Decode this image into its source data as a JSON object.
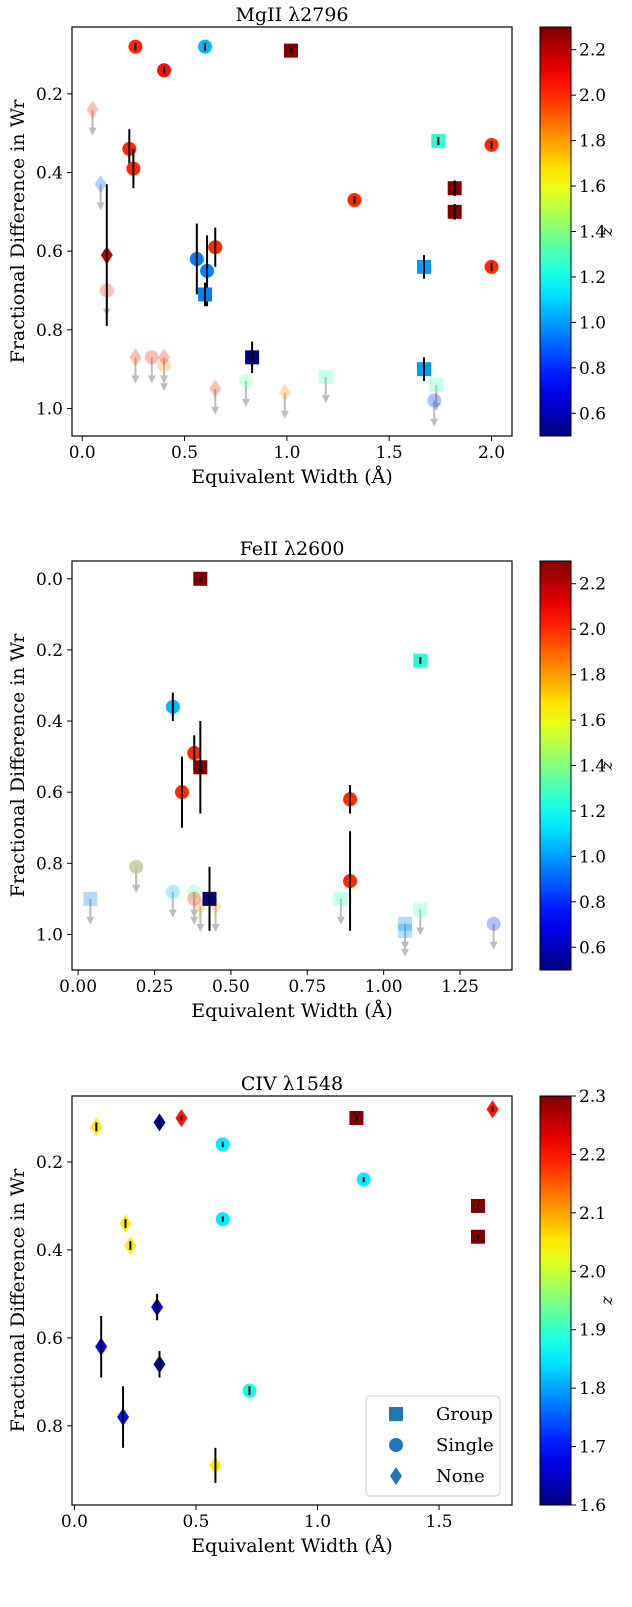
{
  "legend": {
    "entries": [
      {
        "label": "Group",
        "marker": "square"
      },
      {
        "label": "Single",
        "marker": "circle"
      },
      {
        "label": "None",
        "marker": "diamond"
      }
    ],
    "placement": "lower-right",
    "marker_color": "#1f77b4"
  },
  "chart_data": [
    {
      "type": "scatter",
      "title": "MgII λ2796",
      "xlabel": "Equivalent Width (Å)",
      "ylabel": "Fractional Difference in Wr",
      "xlim": [
        -0.05,
        2.1
      ],
      "ylim": [
        1.07,
        0.03
      ],
      "y_inverted": true,
      "xticks": [
        0.0,
        0.5,
        1.0,
        1.5,
        2.0
      ],
      "xtick_labels": [
        "0.0",
        "0.5",
        "1.0",
        "1.5",
        "2.0"
      ],
      "yticks": [
        0.2,
        0.4,
        0.6,
        0.8,
        1.0
      ],
      "ytick_labels": [
        "0.2",
        "0.4",
        "0.6",
        "0.8",
        "1.0"
      ],
      "colorbar": {
        "label": "z",
        "range": [
          0.5,
          2.3
        ],
        "ticks": [
          0.6,
          0.8,
          1.0,
          1.2,
          1.4,
          1.6,
          1.8,
          2.0,
          2.2
        ],
        "tick_labels": [
          "0.6",
          "0.8",
          "1.0",
          "1.2",
          "1.4",
          "1.6",
          "1.8",
          "2.0",
          "2.2"
        ]
      },
      "detections": [
        {
          "x": 0.26,
          "y": 0.08,
          "err": 0.01,
          "z": 2.0,
          "marker": "circle"
        },
        {
          "x": 0.6,
          "y": 0.08,
          "err": 0.01,
          "z": 1.05,
          "marker": "circle"
        },
        {
          "x": 1.02,
          "y": 0.09,
          "err": 0.0,
          "z": 2.3,
          "marker": "square"
        },
        {
          "x": 0.4,
          "y": 0.14,
          "err": 0.01,
          "z": 2.05,
          "marker": "circle"
        },
        {
          "x": 1.74,
          "y": 0.32,
          "err": 0.01,
          "z": 1.25,
          "marker": "square"
        },
        {
          "x": 2.0,
          "y": 0.33,
          "err": 0.01,
          "z": 2.0,
          "marker": "circle"
        },
        {
          "x": 0.23,
          "y": 0.34,
          "err": 0.05,
          "z": 2.0,
          "marker": "circle"
        },
        {
          "x": 0.25,
          "y": 0.39,
          "err": 0.05,
          "z": 2.0,
          "marker": "circle"
        },
        {
          "x": 1.82,
          "y": 0.44,
          "err": 0.02,
          "z": 2.3,
          "marker": "square"
        },
        {
          "x": 1.33,
          "y": 0.47,
          "err": 0.01,
          "z": 2.0,
          "marker": "circle"
        },
        {
          "x": 1.82,
          "y": 0.5,
          "err": 0.02,
          "z": 2.3,
          "marker": "square"
        },
        {
          "x": 0.65,
          "y": 0.59,
          "err": 0.05,
          "z": 2.0,
          "marker": "circle"
        },
        {
          "x": 0.12,
          "y": 0.61,
          "err": 0.18,
          "z": 2.2,
          "marker": "diamond"
        },
        {
          "x": 0.56,
          "y": 0.62,
          "err": 0.09,
          "z": 0.95,
          "marker": "circle"
        },
        {
          "x": 0.61,
          "y": 0.65,
          "err": 0.09,
          "z": 0.95,
          "marker": "circle"
        },
        {
          "x": 1.67,
          "y": 0.64,
          "err": 0.03,
          "z": 1.0,
          "marker": "square"
        },
        {
          "x": 2.0,
          "y": 0.64,
          "err": 0.01,
          "z": 2.0,
          "marker": "circle"
        },
        {
          "x": 0.6,
          "y": 0.71,
          "err": 0.03,
          "z": 0.95,
          "marker": "square"
        },
        {
          "x": 0.83,
          "y": 0.87,
          "err": 0.04,
          "z": 0.5,
          "marker": "square"
        },
        {
          "x": 1.67,
          "y": 0.9,
          "err": 0.03,
          "z": 1.0,
          "marker": "square"
        }
      ],
      "upper_limits": [
        {
          "x": 0.05,
          "y": 0.24,
          "z": 2.0,
          "marker": "diamond"
        },
        {
          "x": 0.09,
          "y": 0.43,
          "z": 0.9,
          "marker": "diamond"
        },
        {
          "x": 0.12,
          "y": 0.7,
          "z": 2.0,
          "marker": "circle"
        },
        {
          "x": 0.26,
          "y": 0.87,
          "z": 2.0,
          "marker": "diamond"
        },
        {
          "x": 0.34,
          "y": 0.87,
          "z": 2.0,
          "marker": "circle"
        },
        {
          "x": 0.4,
          "y": 0.89,
          "z": 1.8,
          "marker": "circle"
        },
        {
          "x": 0.4,
          "y": 0.87,
          "z": 2.0,
          "marker": "diamond"
        },
        {
          "x": 0.65,
          "y": 0.95,
          "z": 2.0,
          "marker": "diamond"
        },
        {
          "x": 0.8,
          "y": 0.93,
          "z": 1.35,
          "marker": "circle"
        },
        {
          "x": 0.99,
          "y": 0.96,
          "z": 1.8,
          "marker": "diamond"
        },
        {
          "x": 1.19,
          "y": 0.92,
          "z": 1.3,
          "marker": "square"
        },
        {
          "x": 1.73,
          "y": 0.94,
          "z": 1.3,
          "marker": "square"
        },
        {
          "x": 1.72,
          "y": 0.98,
          "z": 0.8,
          "marker": "circle"
        }
      ]
    },
    {
      "type": "scatter",
      "title": "FeII λ2600",
      "xlabel": "Equivalent Width (Å)",
      "ylabel": "Fractional Difference in Wr",
      "xlim": [
        -0.02,
        1.42
      ],
      "ylim": [
        1.1,
        -0.05
      ],
      "y_inverted": true,
      "xticks": [
        0.0,
        0.25,
        0.5,
        0.75,
        1.0,
        1.25
      ],
      "xtick_labels": [
        "0.00",
        "0.25",
        "0.50",
        "0.75",
        "1.00",
        "1.25"
      ],
      "yticks": [
        0.0,
        0.2,
        0.4,
        0.6,
        0.8,
        1.0
      ],
      "ytick_labels": [
        "0.0",
        "0.2",
        "0.4",
        "0.6",
        "0.8",
        "1.0"
      ],
      "colorbar": {
        "label": "z",
        "range": [
          0.5,
          2.3
        ],
        "ticks": [
          0.6,
          0.8,
          1.0,
          1.2,
          1.4,
          1.6,
          1.8,
          2.0,
          2.2
        ],
        "tick_labels": [
          "0.6",
          "0.8",
          "1.0",
          "1.2",
          "1.4",
          "1.6",
          "1.8",
          "2.0",
          "2.2"
        ]
      },
      "detections": [
        {
          "x": 0.4,
          "y": 0.0,
          "err": 0.0,
          "z": 2.3,
          "marker": "square"
        },
        {
          "x": 1.12,
          "y": 0.23,
          "err": 0.01,
          "z": 1.25,
          "marker": "square"
        },
        {
          "x": 0.31,
          "y": 0.36,
          "err": 0.04,
          "z": 1.05,
          "marker": "circle"
        },
        {
          "x": 0.38,
          "y": 0.49,
          "err": 0.05,
          "z": 2.0,
          "marker": "circle"
        },
        {
          "x": 0.4,
          "y": 0.53,
          "err": 0.13,
          "z": 2.3,
          "marker": "square"
        },
        {
          "x": 0.34,
          "y": 0.6,
          "err": 0.1,
          "z": 2.0,
          "marker": "circle"
        },
        {
          "x": 0.89,
          "y": 0.62,
          "err": 0.04,
          "z": 2.0,
          "marker": "circle"
        },
        {
          "x": 0.89,
          "y": 0.85,
          "err": 0.14,
          "z": 2.0,
          "marker": "circle"
        },
        {
          "x": 0.43,
          "y": 0.9,
          "err": 0.09,
          "z": 0.5,
          "marker": "square"
        }
      ],
      "upper_limits": [
        {
          "x": 0.04,
          "y": 0.9,
          "z": 0.95,
          "marker": "square"
        },
        {
          "x": 0.19,
          "y": 0.81,
          "z": 2.0,
          "marker": "circle"
        },
        {
          "x": 0.19,
          "y": 0.81,
          "z": 1.35,
          "marker": "circle"
        },
        {
          "x": 0.31,
          "y": 0.88,
          "z": 1.05,
          "marker": "circle"
        },
        {
          "x": 0.38,
          "y": 0.88,
          "z": 1.35,
          "marker": "circle"
        },
        {
          "x": 0.38,
          "y": 0.9,
          "z": 2.0,
          "marker": "circle"
        },
        {
          "x": 0.4,
          "y": 0.92,
          "z": 1.8,
          "marker": "diamond"
        },
        {
          "x": 0.45,
          "y": 0.92,
          "z": 1.8,
          "marker": "diamond"
        },
        {
          "x": 0.86,
          "y": 0.9,
          "z": 1.3,
          "marker": "square"
        },
        {
          "x": 1.07,
          "y": 0.97,
          "z": 0.95,
          "marker": "square"
        },
        {
          "x": 1.07,
          "y": 0.99,
          "z": 1.0,
          "marker": "square"
        },
        {
          "x": 1.12,
          "y": 0.93,
          "z": 1.3,
          "marker": "square"
        },
        {
          "x": 1.36,
          "y": 0.97,
          "z": 0.8,
          "marker": "circle"
        }
      ]
    },
    {
      "type": "scatter",
      "title": "CIV λ1548",
      "xlabel": "Equivalent Width (Å)",
      "ylabel": "Fractional Difference in Wr",
      "xlim": [
        -0.01,
        1.8
      ],
      "ylim": [
        0.98,
        0.05
      ],
      "y_inverted": true,
      "xticks": [
        0.0,
        0.5,
        1.0,
        1.5
      ],
      "xtick_labels": [
        "0.0",
        "0.5",
        "1.0",
        "1.5"
      ],
      "yticks": [
        0.2,
        0.4,
        0.6,
        0.8
      ],
      "ytick_labels": [
        "0.2",
        "0.4",
        "0.6",
        "0.8"
      ],
      "colorbar": {
        "label": "z",
        "range": [
          1.6,
          2.3
        ],
        "ticks": [
          1.6,
          1.7,
          1.8,
          1.9,
          2.0,
          2.1,
          2.2,
          2.3
        ],
        "tick_labels": [
          "1.6",
          "1.7",
          "1.8",
          "1.9",
          "2.0",
          "2.1",
          "2.2",
          "2.3"
        ]
      },
      "detections": [
        {
          "x": 1.72,
          "y": 0.08,
          "err": 0.0,
          "z": 2.2,
          "marker": "diamond"
        },
        {
          "x": 1.16,
          "y": 0.1,
          "err": 0.0,
          "z": 2.3,
          "marker": "square"
        },
        {
          "x": 0.09,
          "y": 0.12,
          "err": 0.01,
          "z": 2.05,
          "marker": "diamond"
        },
        {
          "x": 0.35,
          "y": 0.11,
          "err": 0.01,
          "z": 1.62,
          "marker": "diamond"
        },
        {
          "x": 0.44,
          "y": 0.1,
          "err": 0.0,
          "z": 2.2,
          "marker": "diamond"
        },
        {
          "x": 0.61,
          "y": 0.16,
          "err": 0.0,
          "z": 1.85,
          "marker": "circle"
        },
        {
          "x": 1.19,
          "y": 0.24,
          "err": 0.0,
          "z": 1.85,
          "marker": "circle"
        },
        {
          "x": 1.66,
          "y": 0.3,
          "err": 0.0,
          "z": 2.3,
          "marker": "square"
        },
        {
          "x": 0.61,
          "y": 0.33,
          "err": 0.0,
          "z": 1.85,
          "marker": "circle"
        },
        {
          "x": 0.21,
          "y": 0.34,
          "err": 0.01,
          "z": 2.05,
          "marker": "diamond"
        },
        {
          "x": 1.66,
          "y": 0.37,
          "err": 0.0,
          "z": 2.3,
          "marker": "square"
        },
        {
          "x": 0.23,
          "y": 0.39,
          "err": 0.01,
          "z": 2.05,
          "marker": "diamond"
        },
        {
          "x": 0.34,
          "y": 0.53,
          "err": 0.03,
          "z": 1.65,
          "marker": "diamond"
        },
        {
          "x": 0.11,
          "y": 0.62,
          "err": 0.07,
          "z": 1.68,
          "marker": "diamond"
        },
        {
          "x": 0.35,
          "y": 0.66,
          "err": 0.03,
          "z": 1.62,
          "marker": "diamond"
        },
        {
          "x": 0.72,
          "y": 0.72,
          "err": 0.01,
          "z": 1.88,
          "marker": "circle"
        },
        {
          "x": 0.2,
          "y": 0.78,
          "err": 0.07,
          "z": 1.7,
          "marker": "diamond"
        },
        {
          "x": 0.58,
          "y": 0.89,
          "err": 0.04,
          "z": 2.05,
          "marker": "diamond"
        }
      ],
      "upper_limits": []
    }
  ]
}
